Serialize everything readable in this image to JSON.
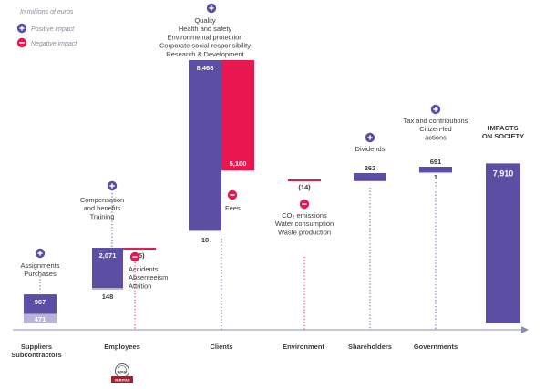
{
  "chart_data": {
    "type": "bar",
    "subtype": "waterfall",
    "unit_note": "In millions of euros",
    "legend": [
      {
        "symbol": "+",
        "label": "Positive impact",
        "color": "#5b4ea3"
      },
      {
        "symbol": "−",
        "label": "Negative impact",
        "color": "#e8174f"
      }
    ],
    "colors": {
      "positive": "#5b4ea3",
      "negative": "#e8174f",
      "light": "#b9b3d9",
      "axis": "#8a8fb0",
      "text": "#3a3a3a",
      "note": "#8a8a9a"
    },
    "categories": [
      {
        "label": [
          "Suppliers",
          "Subcontractors"
        ],
        "positive": 967,
        "negative": 471,
        "pos_labels": [
          "Assignments",
          "Purchases"
        ],
        "neg_labels": []
      },
      {
        "label": [
          "Employees"
        ],
        "positive": 2071,
        "negative": 65,
        "bottom_value": 148,
        "pos_labels": [
          "Compensation",
          "and benefits",
          "Training"
        ],
        "neg_labels": [
          "Accidents",
          "Absenteeism",
          "Attrition"
        ]
      },
      {
        "label": [
          "Clients"
        ],
        "positive": 8468,
        "negative": 5100,
        "bottom_value": 10,
        "pos_labels": [
          "Quality",
          "Health and safety",
          "Environmental protection",
          "Corporate social responsibility",
          "Research & Development"
        ],
        "neg_labels": [
          "Fees"
        ]
      },
      {
        "label": [
          "Environment"
        ],
        "positive": null,
        "negative": 14,
        "pos_labels": [],
        "neg_labels": [
          "CO₂ emissions",
          "Water consumption",
          "Waste production"
        ]
      },
      {
        "label": [
          "Shareholders"
        ],
        "positive": 262,
        "negative": null,
        "pos_labels": [
          "Dividends"
        ],
        "neg_labels": []
      },
      {
        "label": [
          "Governments"
        ],
        "positive": 691,
        "negative": null,
        "bottom_value": 1,
        "pos_labels": [
          "Tax and contributions",
          "Citizen-led",
          "actions"
        ],
        "neg_labels": []
      }
    ],
    "total": {
      "label": [
        "IMPACTS",
        "ON SOCIETY"
      ],
      "value": 7910
    },
    "value_texts": {
      "suppliers_pos": "967",
      "suppliers_neg": "471",
      "employees_pos": "2,071",
      "employees_neg": "(65)",
      "employees_bottom": "148",
      "clients_pos": "8,468",
      "clients_neg": "5,100",
      "clients_bottom": "10",
      "environment_neg": "(14)",
      "shareholders_pos": "262",
      "governments_pos": "691",
      "governments_bottom": "1",
      "total": "7,910"
    },
    "badge": [
      "BUREAU",
      "VERITAS"
    ],
    "grid": false
  }
}
